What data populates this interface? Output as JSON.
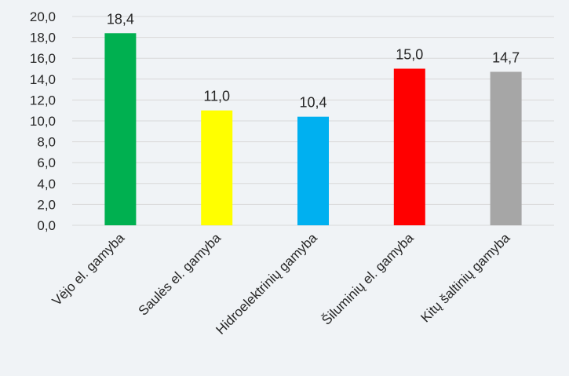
{
  "chart_data": {
    "type": "bar",
    "categories": [
      "Vėjo el. gamyba",
      "Saulės el. gamyba",
      "Hidroelektrinių gamyba",
      "Šiluminių el. gamyba",
      "Kitų  šaltinių gamyba"
    ],
    "values": [
      18.4,
      11.0,
      10.4,
      15.0,
      14.7
    ],
    "value_labels": [
      "18,4",
      "11,0",
      "10,4",
      "15,0",
      "14,7"
    ],
    "bar_colors": [
      "#00b050",
      "#ffff00",
      "#00b0f0",
      "#ff0000",
      "#a6a6a6"
    ],
    "ylim": [
      0,
      20
    ],
    "yticks": [
      "0,0",
      "2,0",
      "4,0",
      "6,0",
      "8,0",
      "10,0",
      "12,0",
      "14,0",
      "16,0",
      "18,0",
      "20,0"
    ],
    "grid": true,
    "title": "",
    "xlabel": "",
    "ylabel": ""
  }
}
